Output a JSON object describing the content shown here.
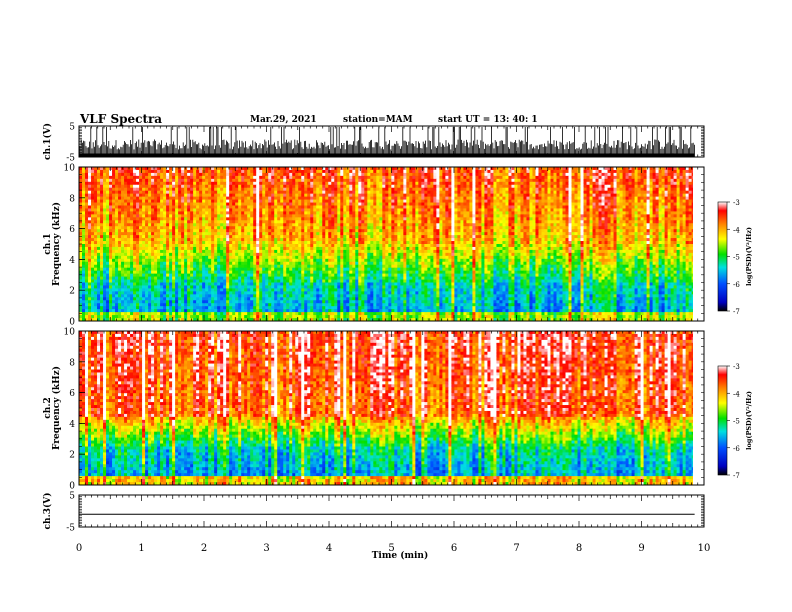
{
  "header": {
    "title": "VLF Spectra",
    "date": "Mar.29, 2021",
    "station": "station=MAM",
    "start": "start  UT =   13: 40: 1"
  },
  "chart_data": [
    {
      "type": "line",
      "name": "ch1-waveform",
      "ylabel": "ch.1(V)",
      "ylim": [
        -5,
        5
      ],
      "yticks": [
        "5",
        "-5"
      ],
      "xlim": [
        0,
        10
      ]
    },
    {
      "type": "heatmap",
      "name": "ch1-spectrogram",
      "ylabel": "ch.1",
      "ylabel2": "Frequency (kHz)",
      "ylim": [
        0,
        10
      ],
      "yticks": [
        "0",
        "2",
        "4",
        "6",
        "8",
        "10"
      ],
      "xlim": [
        0,
        9.85
      ],
      "colorbar": {
        "label": "log(PSD)(V²/Hz)",
        "range": [
          -7,
          -3
        ],
        "ticks": [
          "-3",
          "-4",
          "-5",
          "-6",
          "-7"
        ]
      }
    },
    {
      "type": "heatmap",
      "name": "ch2-spectrogram",
      "ylabel": "ch.2",
      "ylabel2": "Frequency (kHz)",
      "ylim": [
        0,
        10
      ],
      "yticks": [
        "0",
        "2",
        "4",
        "6",
        "8",
        "10"
      ],
      "xlim": [
        0,
        9.85
      ],
      "colorbar": {
        "label": "log(PSD)(V²/Hz)",
        "range": [
          -7,
          -3
        ],
        "ticks": [
          "-3",
          "-4",
          "-5",
          "-6",
          "-7"
        ]
      }
    },
    {
      "type": "line",
      "name": "ch3-waveform",
      "ylabel": "ch.3(V)",
      "ylim": [
        -5,
        5
      ],
      "yticks": [
        "5",
        "-5"
      ],
      "xlim": [
        0,
        10
      ],
      "constant_value": -1
    }
  ],
  "xaxis": {
    "label": "Time  (min)",
    "range": [
      0,
      10
    ],
    "ticks": [
      "0",
      "1",
      "2",
      "3",
      "4",
      "5",
      "6",
      "7",
      "8",
      "9",
      "10"
    ]
  }
}
